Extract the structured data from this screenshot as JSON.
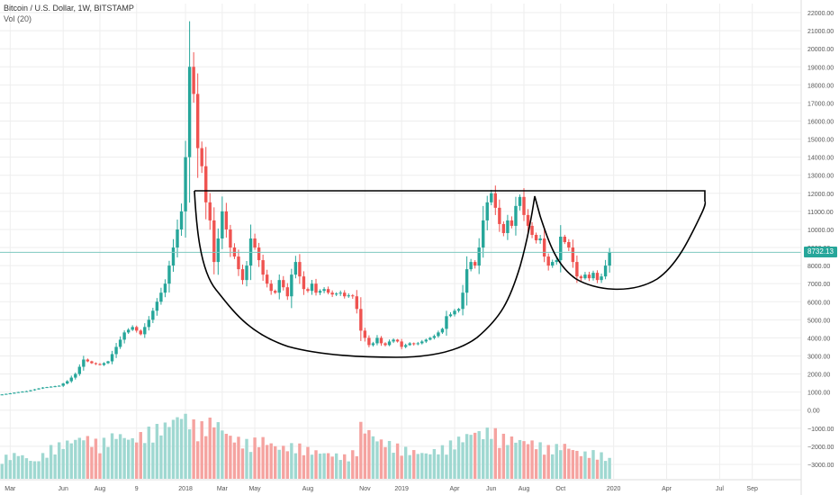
{
  "header": {
    "symbol_title": "Bitcoin / U.S. Dollar, 1W, BITSTAMP",
    "volume_label": "Vol (20)"
  },
  "last_price_label": "8732.13",
  "colors": {
    "up": "#26a69a",
    "down": "#ef5350",
    "vol_up": "#9fd8d1",
    "vol_down": "#f5a3a0",
    "last_price_line": "#7ec8c0",
    "grid": "#eeeeee",
    "axis_text": "#555555",
    "drawing": "#000000"
  },
  "chart_data": {
    "type": "candlestick",
    "price_ticks": [
      "22000.00",
      "21000.00",
      "20000.00",
      "19000.00",
      "18000.00",
      "17000.00",
      "16000.00",
      "15000.00",
      "14000.00",
      "13000.00",
      "12000.00",
      "11000.00",
      "10000.00",
      "9000.00",
      "8000.00",
      "7000.00",
      "6000.00",
      "5000.00",
      "4000.00",
      "3000.00",
      "2000.00",
      "1000.00",
      "0.00",
      "−1000.00",
      "−2000.00",
      "−3000.00"
    ],
    "price_tick_values": [
      22000,
      21000,
      20000,
      19000,
      18000,
      17000,
      16000,
      15000,
      14000,
      13000,
      12000,
      11000,
      10000,
      9000,
      8000,
      7000,
      6000,
      5000,
      4000,
      3000,
      2000,
      1000,
      0,
      -1000,
      -2000,
      -3000
    ],
    "y_range": [
      -3800,
      22500
    ],
    "x_ticks": [
      {
        "label": "Mar",
        "week": 2
      },
      {
        "label": "Jun",
        "week": 15
      },
      {
        "label": "Aug",
        "week": 24
      },
      {
        "label": "9",
        "week": 33
      },
      {
        "label": "2018",
        "week": 45
      },
      {
        "label": "Mar",
        "week": 54
      },
      {
        "label": "May",
        "week": 62
      },
      {
        "label": "Aug",
        "week": 75
      },
      {
        "label": "Nov",
        "week": 89
      },
      {
        "label": "2019",
        "week": 98
      },
      {
        "label": "Apr",
        "week": 111
      },
      {
        "label": "Jun",
        "week": 120
      },
      {
        "label": "Aug",
        "week": 128
      },
      {
        "label": "Oct",
        "week": 137
      },
      {
        "label": "2020",
        "week": 150
      },
      {
        "label": "Apr",
        "week": 163
      },
      {
        "label": "Jul",
        "week": 176
      },
      {
        "label": "Sep",
        "week": 184
      }
    ],
    "week_range": [
      -0.5,
      196
    ],
    "last_price": 8732.13,
    "price_points": [
      [
        0,
        870
      ],
      [
        2,
        930
      ],
      [
        4,
        1000
      ],
      [
        6,
        1050
      ],
      [
        8,
        1150
      ],
      [
        10,
        1250
      ],
      [
        12,
        1300
      ],
      [
        14,
        1350
      ],
      [
        16,
        1600
      ],
      [
        18,
        2000
      ],
      [
        20,
        2800
      ],
      [
        22,
        2600
      ],
      [
        24,
        2500
      ],
      [
        26,
        2700
      ],
      [
        28,
        3500
      ],
      [
        30,
        4300
      ],
      [
        32,
        4600
      ],
      [
        34,
        4200
      ],
      [
        36,
        5000
      ],
      [
        38,
        6000
      ],
      [
        40,
        7000
      ],
      [
        42,
        9000
      ],
      [
        44,
        11000
      ],
      [
        45,
        14000
      ],
      [
        46,
        19000
      ],
      [
        47,
        17500
      ],
      [
        48,
        14500
      ],
      [
        49,
        13500
      ],
      [
        50,
        11500
      ],
      [
        51,
        10500
      ],
      [
        52,
        8200
      ],
      [
        53,
        9500
      ],
      [
        54,
        11000
      ],
      [
        55,
        10000
      ],
      [
        56,
        9000
      ],
      [
        57,
        8500
      ],
      [
        58,
        7800
      ],
      [
        59,
        7200
      ],
      [
        60,
        8000
      ],
      [
        61,
        9500
      ],
      [
        62,
        9000
      ],
      [
        63,
        8300
      ],
      [
        64,
        7500
      ],
      [
        65,
        7000
      ],
      [
        66,
        6600
      ],
      [
        67,
        6500
      ],
      [
        68,
        7200
      ],
      [
        69,
        6800
      ],
      [
        70,
        6300
      ],
      [
        71,
        7500
      ],
      [
        72,
        8200
      ],
      [
        73,
        7400
      ],
      [
        74,
        6700
      ],
      [
        75,
        6600
      ],
      [
        76,
        7000
      ],
      [
        77,
        6500
      ],
      [
        78,
        6600
      ],
      [
        79,
        6700
      ],
      [
        80,
        6500
      ],
      [
        81,
        6400
      ],
      [
        82,
        6450
      ],
      [
        83,
        6500
      ],
      [
        84,
        6300
      ],
      [
        85,
        6350
      ],
      [
        86,
        6300
      ],
      [
        87,
        5600
      ],
      [
        88,
        4400
      ],
      [
        89,
        4000
      ],
      [
        90,
        3600
      ],
      [
        91,
        3700
      ],
      [
        92,
        4000
      ],
      [
        93,
        3700
      ],
      [
        94,
        3600
      ],
      [
        95,
        3800
      ],
      [
        96,
        3900
      ],
      [
        97,
        3800
      ],
      [
        98,
        3500
      ],
      [
        99,
        3600
      ],
      [
        100,
        3700
      ],
      [
        101,
        3650
      ],
      [
        102,
        3700
      ],
      [
        103,
        3800
      ],
      [
        104,
        3900
      ],
      [
        105,
        4000
      ],
      [
        106,
        4100
      ],
      [
        107,
        4300
      ],
      [
        108,
        4500
      ],
      [
        109,
        5200
      ],
      [
        110,
        5300
      ],
      [
        111,
        5500
      ],
      [
        112,
        5600
      ],
      [
        113,
        6500
      ],
      [
        114,
        7800
      ],
      [
        115,
        8200
      ],
      [
        116,
        8000
      ],
      [
        117,
        9000
      ],
      [
        118,
        10500
      ],
      [
        119,
        11500
      ],
      [
        120,
        12000
      ],
      [
        121,
        11200
      ],
      [
        122,
        10300
      ],
      [
        123,
        9800
      ],
      [
        124,
        10500
      ],
      [
        125,
        10200
      ],
      [
        126,
        11300
      ],
      [
        127,
        11800
      ],
      [
        128,
        10800
      ],
      [
        129,
        10200
      ],
      [
        130,
        9700
      ],
      [
        131,
        9400
      ],
      [
        132,
        9500
      ],
      [
        133,
        8500
      ],
      [
        134,
        8000
      ],
      [
        135,
        8200
      ],
      [
        136,
        8300
      ],
      [
        137,
        9600
      ],
      [
        138,
        9300
      ],
      [
        139,
        9000
      ],
      [
        140,
        8200
      ],
      [
        141,
        7400
      ],
      [
        142,
        7300
      ],
      [
        143,
        7500
      ],
      [
        144,
        7300
      ],
      [
        145,
        7600
      ],
      [
        146,
        7200
      ],
      [
        147,
        7400
      ],
      [
        148,
        8000
      ],
      [
        149,
        8732
      ]
    ],
    "volume_points": [
      [
        0,
        1500
      ],
      [
        4,
        1800
      ],
      [
        8,
        1200
      ],
      [
        12,
        2200
      ],
      [
        16,
        2600
      ],
      [
        20,
        3000
      ],
      [
        24,
        2500
      ],
      [
        28,
        3200
      ],
      [
        32,
        2800
      ],
      [
        36,
        3400
      ],
      [
        40,
        3800
      ],
      [
        44,
        4600
      ],
      [
        46,
        4200
      ],
      [
        48,
        3600
      ],
      [
        50,
        3900
      ],
      [
        52,
        4200
      ],
      [
        56,
        3000
      ],
      [
        60,
        2600
      ],
      [
        64,
        2800
      ],
      [
        68,
        2200
      ],
      [
        72,
        2400
      ],
      [
        76,
        2000
      ],
      [
        80,
        1800
      ],
      [
        84,
        1600
      ],
      [
        87,
        2000
      ],
      [
        88,
        3800
      ],
      [
        90,
        3400
      ],
      [
        92,
        2800
      ],
      [
        96,
        2400
      ],
      [
        100,
        2000
      ],
      [
        104,
        1800
      ],
      [
        108,
        2200
      ],
      [
        112,
        2800
      ],
      [
        116,
        3400
      ],
      [
        118,
        3200
      ],
      [
        120,
        3600
      ],
      [
        122,
        3000
      ],
      [
        126,
        2800
      ],
      [
        130,
        2600
      ],
      [
        134,
        2200
      ],
      [
        138,
        2400
      ],
      [
        142,
        1800
      ],
      [
        146,
        1900
      ],
      [
        149,
        1400
      ]
    ],
    "volume_base": -3800,
    "volume_scale": 0.85
  }
}
